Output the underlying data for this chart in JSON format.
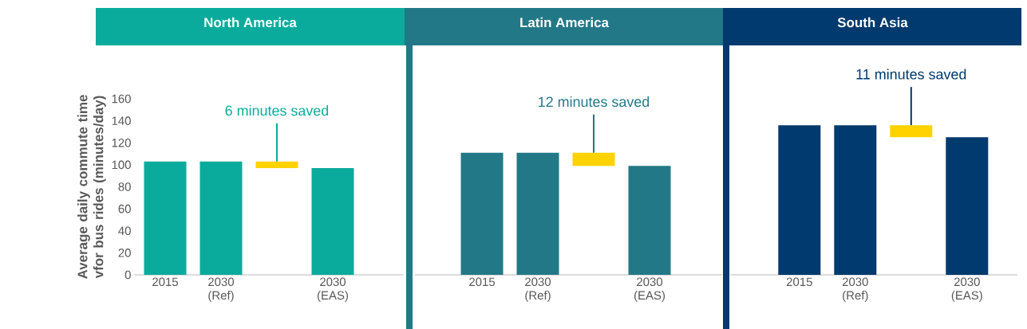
{
  "chart_data": [
    {
      "type": "bar",
      "title": "North America",
      "ylabel": "Average daily commute time vfor bus rides (minutes/day)",
      "categories": [
        "2015",
        "2030 (Ref)",
        null,
        "2030 (EAS)"
      ],
      "values": [
        103,
        103,
        6,
        97
      ],
      "base": [
        0,
        0,
        97,
        0
      ],
      "colors": [
        "#0aab9c",
        "#0aab9c",
        "#ffd200",
        "#0aab9c"
      ],
      "ylim": [
        0,
        160
      ],
      "yticks": [
        0,
        20,
        40,
        60,
        80,
        100,
        120,
        140,
        160
      ],
      "annotations": [
        {
          "text": "6 minutes saved",
          "y": 103
        }
      ]
    },
    {
      "type": "bar",
      "title": "Latin America",
      "categories": [
        "2015",
        "2030 (Ref)",
        null,
        "2030 (EAS)"
      ],
      "values": [
        111,
        111,
        12,
        99
      ],
      "base": [
        0,
        0,
        99,
        0
      ],
      "colors": [
        "#237887",
        "#237887",
        "#ffd200",
        "#237887"
      ],
      "ylim": [
        0,
        160
      ],
      "tick_labels": "x",
      "annotations": [
        {
          "text": "12 minutes saved",
          "y": 111
        }
      ]
    },
    {
      "type": "bar",
      "title": "South Asia",
      "categories": [
        "2015",
        "2030 (Ref)",
        null,
        "2030 (EAS)"
      ],
      "values": [
        136,
        136,
        11,
        125
      ],
      "base": [
        0,
        0,
        125,
        0
      ],
      "colors": [
        "#003a6e",
        "#003a6e",
        "#ffd200",
        "#003a6e"
      ],
      "ylim": [
        0,
        160
      ],
      "tick_labels": "x",
      "annotations": [
        {
          "text": "11 minutes saved",
          "y": 136
        }
      ]
    }
  ]
}
